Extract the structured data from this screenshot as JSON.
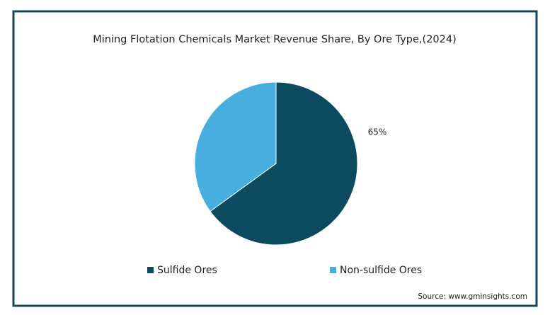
{
  "chart_data": {
    "type": "pie",
    "title": "Mining Flotation Chemicals Market Revenue Share, By Ore Type,(2024)",
    "categories": [
      "Sulfide Ores",
      "Non-sulfide Ores"
    ],
    "values": [
      65,
      35
    ],
    "value_labels": [
      "65%",
      null
    ],
    "colors": [
      "#0b4a5f",
      "#47aee0"
    ],
    "source": "Source: www.gminsights.com"
  }
}
